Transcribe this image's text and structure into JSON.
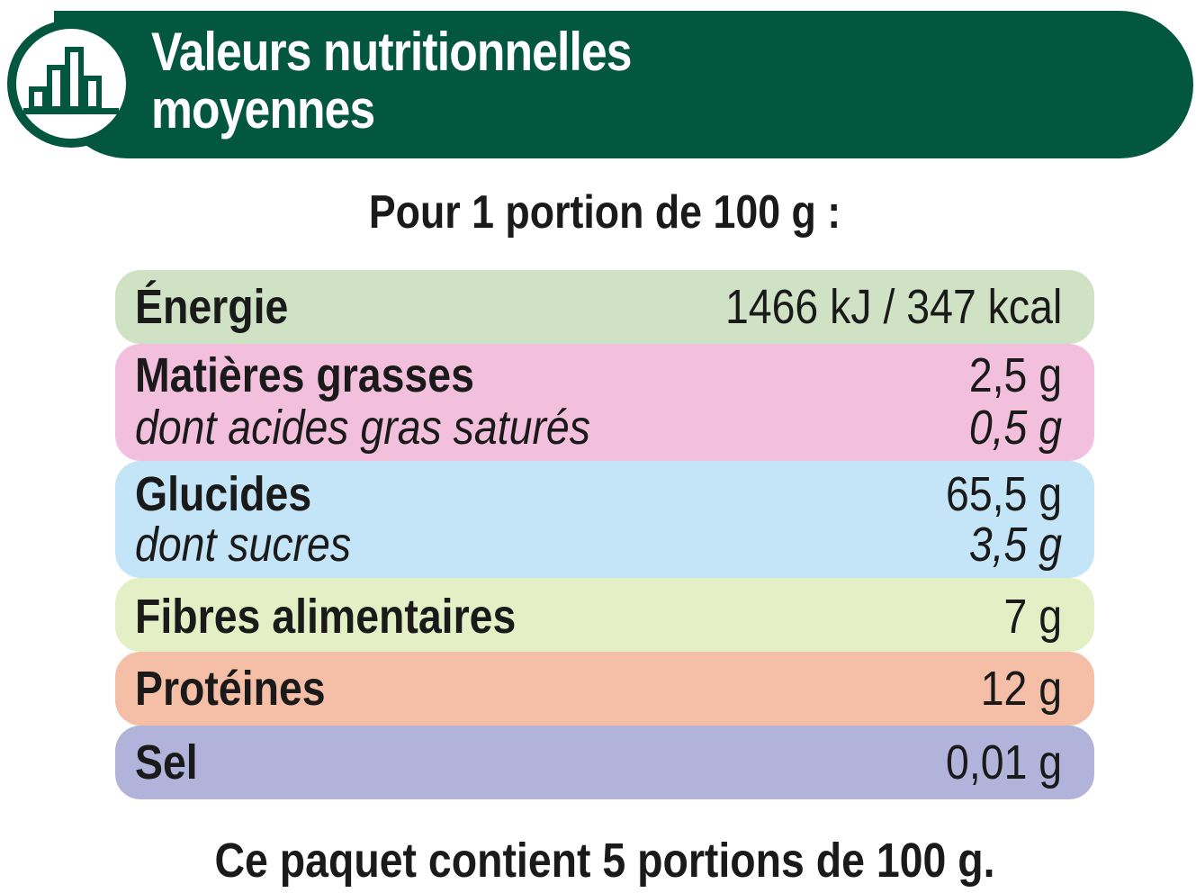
{
  "header": {
    "title_line1": "Valeurs nutritionnelles",
    "title_line2": "moyennes",
    "icon": "bar-chart-icon",
    "color": "#02573e"
  },
  "portion": "Pour 1 portion de 100 g :",
  "rows": [
    {
      "color": "#cfe3c4",
      "label": "Énergie",
      "value": "1466 kJ / 347 kcal"
    },
    {
      "color": "#f2bfdc",
      "label": "Matières grasses",
      "value": "2,5 g",
      "sub_label": "dont acides gras saturés",
      "sub_value": "0,5 g"
    },
    {
      "color": "#c4e4f7",
      "label": "Glucides",
      "value": "65,5 g",
      "sub_label": "dont sucres",
      "sub_value": "3,5 g"
    },
    {
      "color": "#e5efc6",
      "label": "Fibres alimentaires",
      "value": "7 g"
    },
    {
      "color": "#f5bea6",
      "label": "Protéines",
      "value": "12 g"
    },
    {
      "color": "#b1b3da",
      "label": "Sel",
      "value": "0,01 g"
    }
  ],
  "footer": "Ce paquet contient 5 portions de 100 g."
}
